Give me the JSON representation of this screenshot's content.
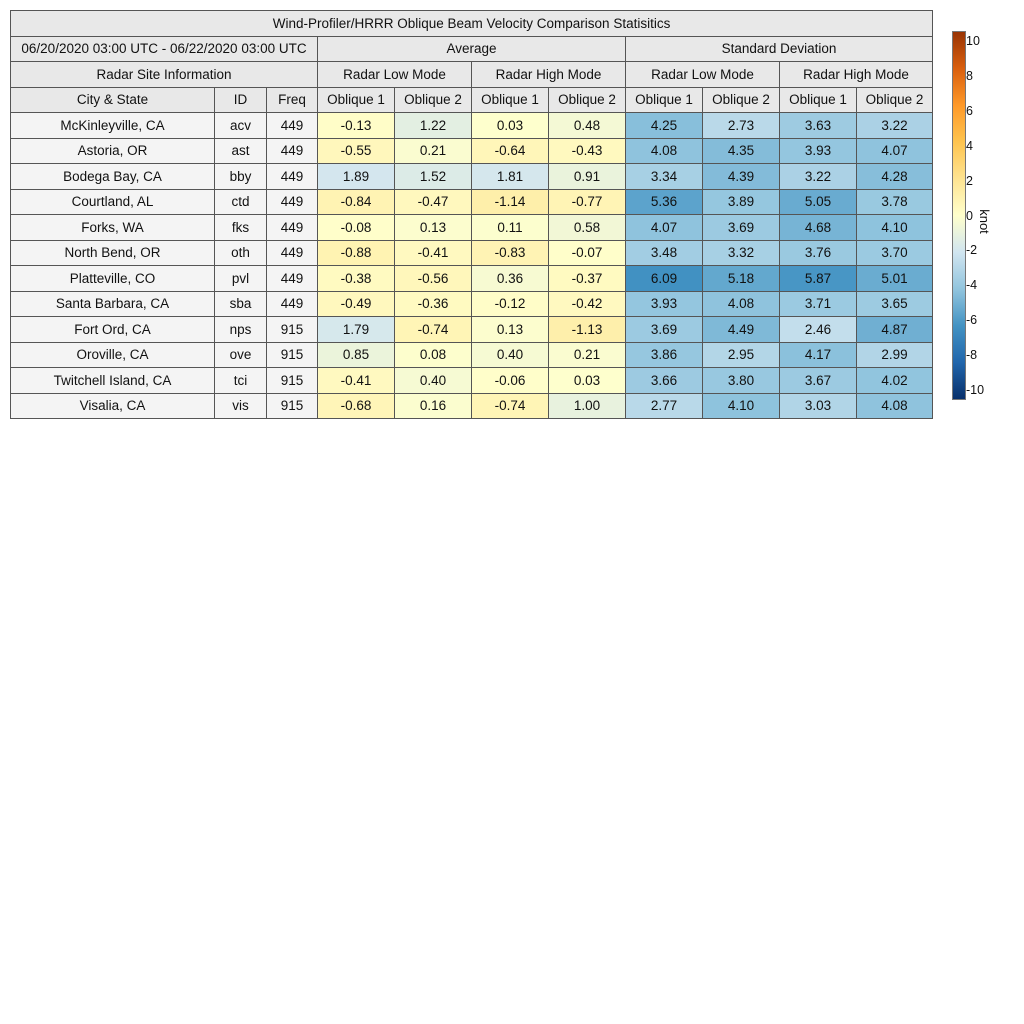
{
  "title": "Wind-Profiler/HRRR Oblique Beam Velocity Comparison Statisitics",
  "period": "06/20/2020 03:00 UTC - 06/22/2020 03:00 UTC",
  "group_headers": [
    "Average",
    "Standard Deviation"
  ],
  "info_header": "Radar Site Information",
  "mode_headers": [
    "Radar Low Mode",
    "Radar High Mode",
    "Radar Low Mode",
    "Radar High Mode"
  ],
  "column_headers": [
    "City & State",
    "ID",
    "Freq",
    "Oblique 1",
    "Oblique 2",
    "Oblique 1",
    "Oblique 2",
    "Oblique 1",
    "Oblique 2",
    "Oblique 1",
    "Oblique 2"
  ],
  "colorbar": {
    "unit": "knot",
    "min": -10,
    "max": 10,
    "ticks": [
      "10",
      "8",
      "6",
      "4",
      "2",
      "0",
      "-2",
      "-4",
      "-6",
      "-8",
      "-10"
    ],
    "colors": [
      "#08306b",
      "#2166ac",
      "#4393c3",
      "#92c5de",
      "#d1e5f0",
      "#ffffcc",
      "#fee391",
      "#fec44f",
      "#fe9929",
      "#d95f0e",
      "#993404"
    ]
  },
  "chart_data": {
    "type": "table",
    "title": "Wind-Profiler/HRRR Oblique Beam Velocity Comparison Statisitics",
    "unit": "knot",
    "sites": [
      {
        "city": "McKinleyville, CA",
        "id": "acv",
        "freq": "449",
        "values": [
          "-0.13",
          "1.22",
          "0.03",
          "0.48",
          "4.25",
          "2.73",
          "3.63",
          "3.22"
        ]
      },
      {
        "city": "Astoria, OR",
        "id": "ast",
        "freq": "449",
        "values": [
          "-0.55",
          "0.21",
          "-0.64",
          "-0.43",
          "4.08",
          "4.35",
          "3.93",
          "4.07"
        ]
      },
      {
        "city": "Bodega Bay, CA",
        "id": "bby",
        "freq": "449",
        "values": [
          "1.89",
          "1.52",
          "1.81",
          "0.91",
          "3.34",
          "4.39",
          "3.22",
          "4.28"
        ]
      },
      {
        "city": "Courtland, AL",
        "id": "ctd",
        "freq": "449",
        "values": [
          "-0.84",
          "-0.47",
          "-1.14",
          "-0.77",
          "5.36",
          "3.89",
          "5.05",
          "3.78"
        ]
      },
      {
        "city": "Forks, WA",
        "id": "fks",
        "freq": "449",
        "values": [
          "-0.08",
          "0.13",
          "0.11",
          "0.58",
          "4.07",
          "3.69",
          "4.68",
          "4.10"
        ]
      },
      {
        "city": "North Bend, OR",
        "id": "oth",
        "freq": "449",
        "values": [
          "-0.88",
          "-0.41",
          "-0.83",
          "-0.07",
          "3.48",
          "3.32",
          "3.76",
          "3.70"
        ]
      },
      {
        "city": "Platteville, CO",
        "id": "pvl",
        "freq": "449",
        "values": [
          "-0.38",
          "-0.56",
          "0.36",
          "-0.37",
          "6.09",
          "5.18",
          "5.87",
          "5.01"
        ]
      },
      {
        "city": "Santa Barbara, CA",
        "id": "sba",
        "freq": "449",
        "values": [
          "-0.49",
          "-0.36",
          "-0.12",
          "-0.42",
          "3.93",
          "4.08",
          "3.71",
          "3.65"
        ]
      },
      {
        "city": "Fort Ord, CA",
        "id": "nps",
        "freq": "915",
        "values": [
          "1.79",
          "-0.74",
          "0.13",
          "-1.13",
          "3.69",
          "4.49",
          "2.46",
          "4.87"
        ]
      },
      {
        "city": "Oroville, CA",
        "id": "ove",
        "freq": "915",
        "values": [
          "0.85",
          "0.08",
          "0.40",
          "0.21",
          "3.86",
          "2.95",
          "4.17",
          "2.99"
        ]
      },
      {
        "city": "Twitchell Island, CA",
        "id": "tci",
        "freq": "915",
        "values": [
          "-0.41",
          "0.40",
          "-0.06",
          "0.03",
          "3.66",
          "3.80",
          "3.67",
          "4.02"
        ]
      },
      {
        "city": "Visalia, CA",
        "id": "vis",
        "freq": "915",
        "values": [
          "-0.68",
          "0.16",
          "-0.74",
          "1.00",
          "2.77",
          "4.10",
          "3.03",
          "4.08"
        ]
      }
    ]
  }
}
